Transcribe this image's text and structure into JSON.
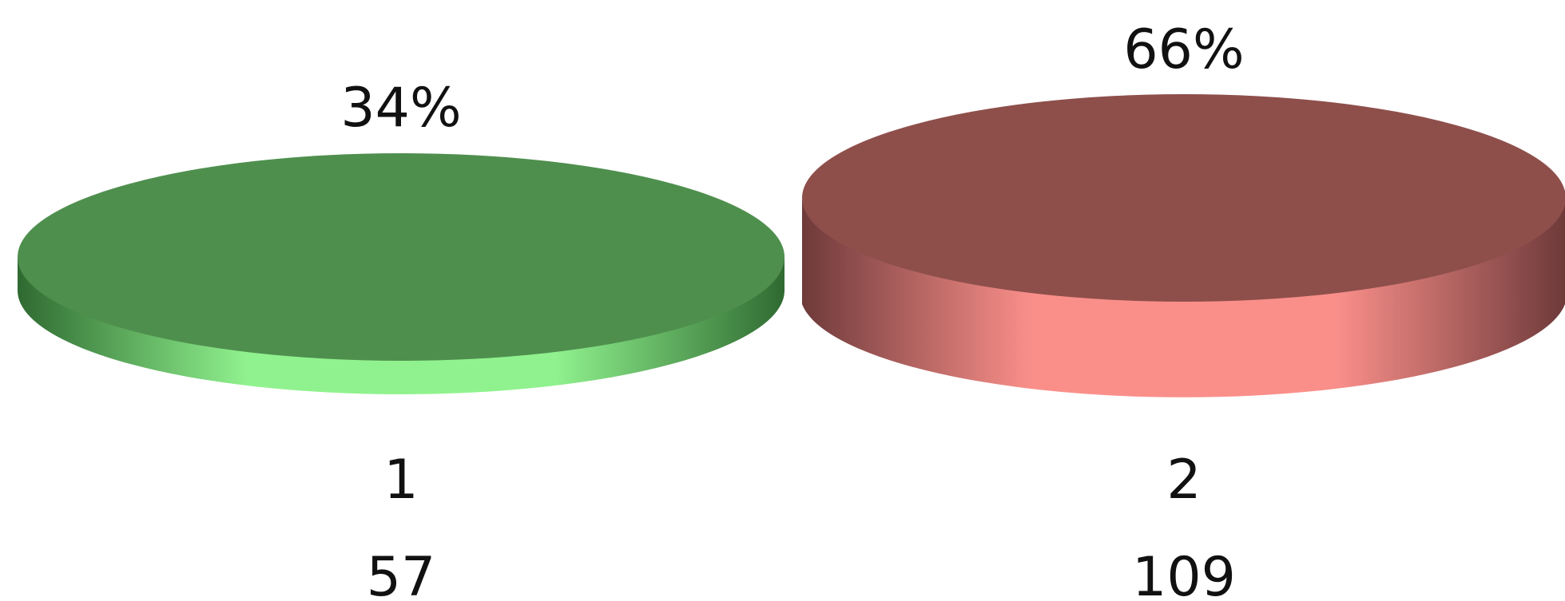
{
  "chart_data": {
    "type": "bar",
    "style": "3d-disc",
    "categories": [
      "1",
      "2"
    ],
    "values": [
      57,
      109
    ],
    "percent_labels": [
      "34%",
      "66%"
    ],
    "colors": [
      "#4f8f4e",
      "#8e4f4b"
    ],
    "side_highlight_colors": [
      "#90f28e",
      "#fa8f8a"
    ],
    "title": "",
    "xlabel": "",
    "ylabel": "",
    "legend": "none",
    "grid": false
  }
}
